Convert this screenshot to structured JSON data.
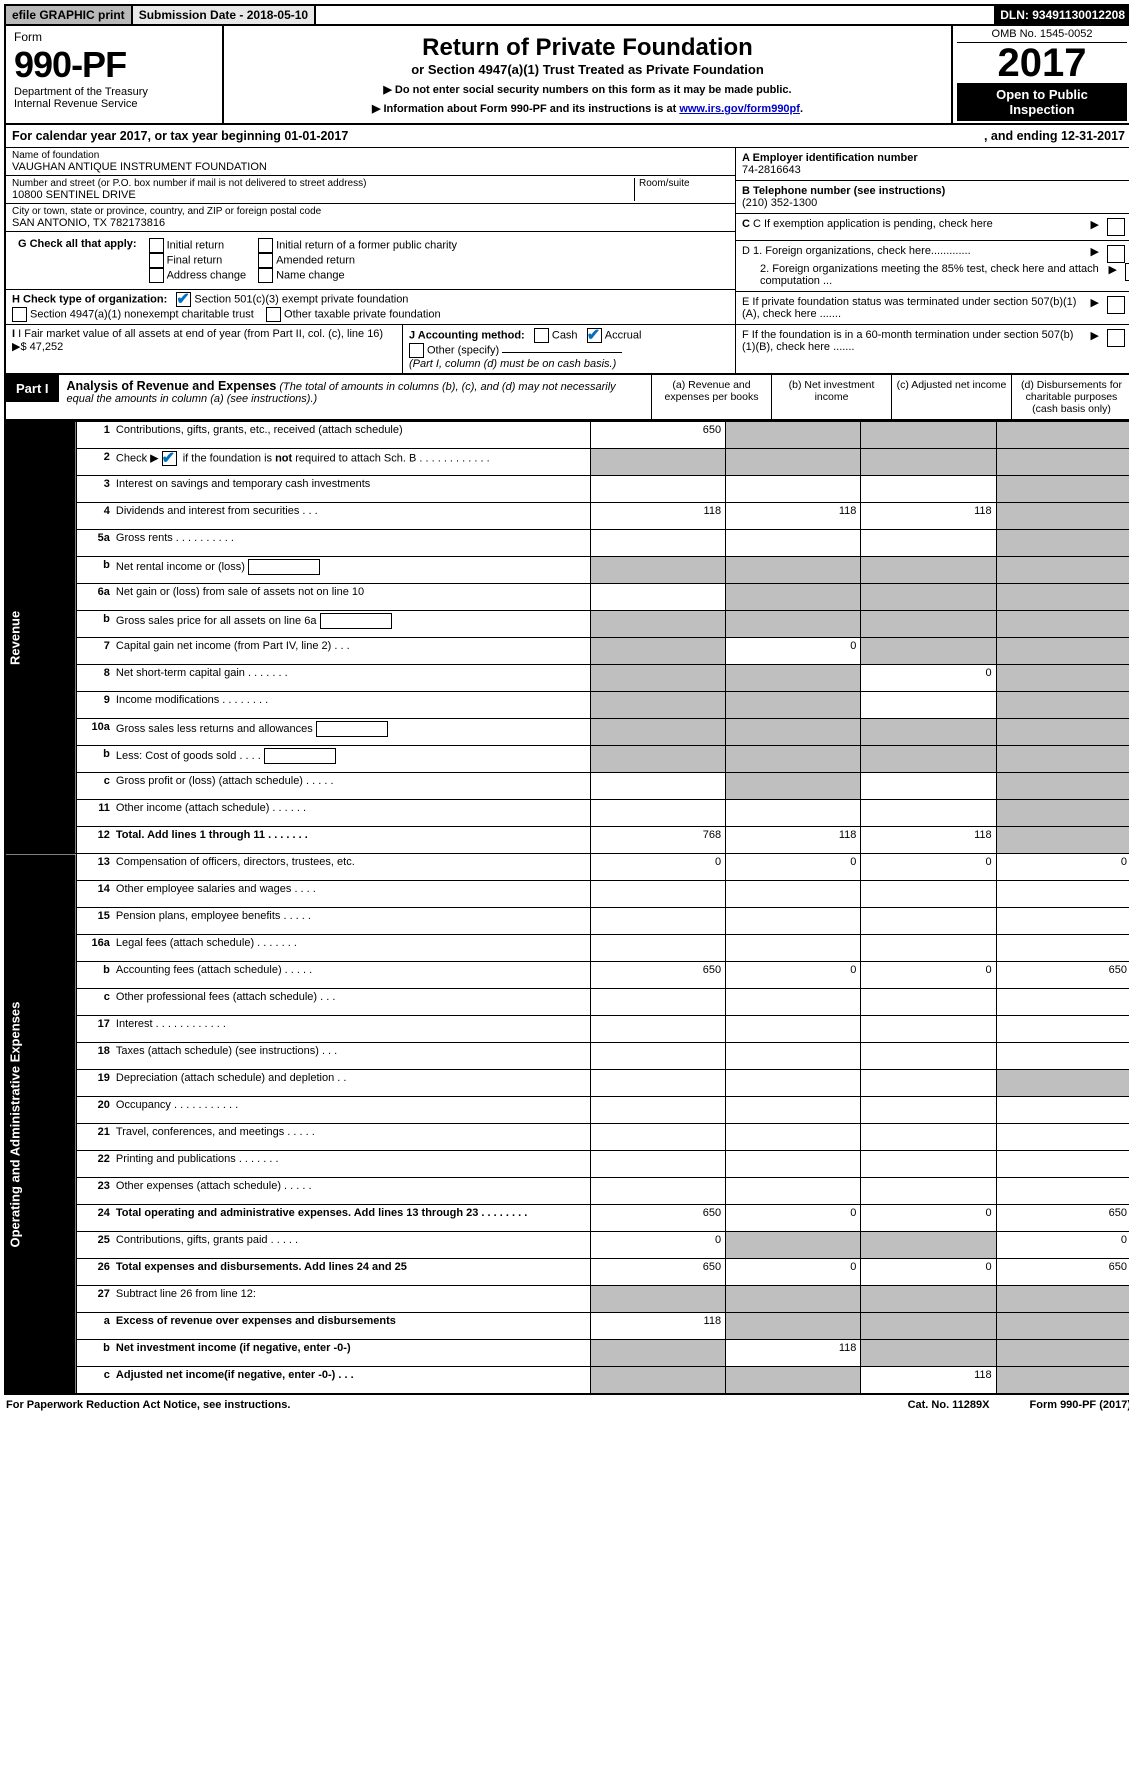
{
  "topbar": {
    "efile": "efile GRAPHIC print",
    "subdate_label": "Submission Date - ",
    "subdate": "2018-05-10",
    "dln_label": "DLN: ",
    "dln": "93491130012208"
  },
  "header": {
    "form_word": "Form",
    "form_no": "990-PF",
    "dept1": "Department of the Treasury",
    "dept2": "Internal Revenue Service",
    "title": "Return of Private Foundation",
    "subtitle": "or Section 4947(a)(1) Trust Treated as Private Foundation",
    "instr1": "▶ Do not enter social security numbers on this form as it may be made public.",
    "instr2_pre": "▶ Information about Form 990-PF and its instructions is at ",
    "instr2_link": "www.irs.gov/form990pf",
    "omb": "OMB No. 1545-0052",
    "year": "2017",
    "open1": "Open to Public",
    "open2": "Inspection"
  },
  "cal": {
    "txt1": "For calendar year 2017, or tax year beginning ",
    "begin": "01-01-2017",
    "txt2": ", and ending ",
    "end": "12-31-2017"
  },
  "name": {
    "lbl": "Name of foundation",
    "val": "VAUGHAN ANTIQUE INSTRUMENT FOUNDATION"
  },
  "addr": {
    "lbl": "Number and street (or P.O. box number if mail is not delivered to street address)",
    "room_lbl": "Room/suite",
    "val": "10800 SENTINEL DRIVE"
  },
  "city": {
    "lbl": "City or town, state or province, country, and ZIP or foreign postal code",
    "val": "SAN ANTONIO, TX  782173816"
  },
  "right": {
    "a_lbl": "A Employer identification number",
    "a_val": "74-2816643",
    "b_lbl": "B Telephone number (see instructions)",
    "b_val": "(210) 352-1300",
    "c_lbl": "C If exemption application is pending, check here",
    "d1": "D 1. Foreign organizations, check here.............",
    "d2": "2. Foreign organizations meeting the 85% test, check here and attach computation ...",
    "e": "E  If private foundation status was terminated under section 507(b)(1)(A), check here .......",
    "f": "F  If the foundation is in a 60-month termination under section 507(b)(1)(B), check here ......."
  },
  "g": {
    "lbl": "G Check all that apply:",
    "initial": "Initial return",
    "initial_former": "Initial return of a former public charity",
    "final": "Final return",
    "amended": "Amended return",
    "address": "Address change",
    "namechg": "Name change"
  },
  "h": {
    "lbl": "H Check type of organization:",
    "s501c3": "Section 501(c)(3) exempt private foundation",
    "s4947": "Section 4947(a)(1) nonexempt charitable trust",
    "other": "Other taxable private foundation"
  },
  "i": {
    "lbl": "I Fair market value of all assets at end of year (from Part II, col. (c), line 16)",
    "arrow": "▶$ ",
    "val": "47,252"
  },
  "j": {
    "lbl": "J Accounting method:",
    "cash": "Cash",
    "accrual": "Accrual",
    "other_lbl": "Other (specify)",
    "note": "(Part I, column (d) must be on cash basis.)"
  },
  "part1": {
    "tab": "Part I",
    "title": "Analysis of Revenue and Expenses",
    "note": "(The total of amounts in columns (b), (c), and (d) may not necessarily equal the amounts in column (a) (see instructions).)",
    "col_a": "(a)   Revenue and expenses per books",
    "col_b": "(b)  Net investment income",
    "col_c": "(c)  Adjusted net income",
    "col_d": "(d)  Disbursements for charitable purposes (cash basis only)"
  },
  "sidelabels": {
    "rev": "Revenue",
    "exp": "Operating and Administrative Expenses"
  },
  "rows": {
    "r1": {
      "n": "1",
      "t": "Contributions, gifts, grants, etc., received (attach schedule)",
      "a": "650",
      "b": "",
      "c": "",
      "d": "",
      "sb": true,
      "sc": true,
      "sd": true
    },
    "r2": {
      "n": "2",
      "t": "Check ▶ ✔ if the foundation is not required to attach Sch. B",
      "a": "",
      "b": "",
      "c": "",
      "d": "",
      "sa": true,
      "sb": true,
      "sc": true,
      "sd": true,
      "bold_not": true
    },
    "r3": {
      "n": "3",
      "t": "Interest on savings and temporary cash investments",
      "a": "",
      "b": "",
      "c": "",
      "d": "",
      "sd": true
    },
    "r4": {
      "n": "4",
      "t": "Dividends and interest from securities   .   .   .",
      "a": "118",
      "b": "118",
      "c": "118",
      "d": "",
      "sd": true
    },
    "r5a": {
      "n": "5a",
      "t": "Gross rents   .   .   .   .   .   .   .   .   .   .",
      "a": "",
      "b": "",
      "c": "",
      "d": "",
      "sd": true
    },
    "r5b": {
      "n": "b",
      "t": "Net rental income or (loss)   ",
      "a": "",
      "b": "",
      "c": "",
      "d": "",
      "sa": true,
      "sb": true,
      "sc": true,
      "sd": true,
      "box": true
    },
    "r6a": {
      "n": "6a",
      "t": "Net gain or (loss) from sale of assets not on line 10",
      "a": "",
      "b": "",
      "c": "",
      "d": "",
      "sb": true,
      "sc": true,
      "sd": true
    },
    "r6b": {
      "n": "b",
      "t": "Gross sales price for all assets on line 6a  ",
      "a": "",
      "b": "",
      "c": "",
      "d": "",
      "sa": true,
      "sb": true,
      "sc": true,
      "sd": true,
      "box": true
    },
    "r7": {
      "n": "7",
      "t": "Capital gain net income (from Part IV, line 2)   .   .   .",
      "a": "",
      "b": "0",
      "c": "",
      "d": "",
      "sa": true,
      "sc": true,
      "sd": true
    },
    "r8": {
      "n": "8",
      "t": "Net short-term capital gain   .   .   .   .   .   .   .",
      "a": "",
      "b": "",
      "c": "0",
      "d": "",
      "sa": true,
      "sb": true,
      "sd": true
    },
    "r9": {
      "n": "9",
      "t": "Income modifications   .   .   .   .   .   .   .   .",
      "a": "",
      "b": "",
      "c": "",
      "d": "",
      "sa": true,
      "sb": true,
      "sd": true
    },
    "r10a": {
      "n": "10a",
      "t": "Gross sales less returns and allowances   ",
      "a": "",
      "b": "",
      "c": "",
      "d": "",
      "sa": true,
      "sb": true,
      "sc": true,
      "sd": true,
      "box": true
    },
    "r10b": {
      "n": "b",
      "t": "Less: Cost of goods sold   .   .   .   .   ",
      "a": "",
      "b": "",
      "c": "",
      "d": "",
      "sa": true,
      "sb": true,
      "sc": true,
      "sd": true,
      "box": true
    },
    "r10c": {
      "n": "c",
      "t": "Gross profit or (loss) (attach schedule)   .   .   .   .   .",
      "a": "",
      "b": "",
      "c": "",
      "d": "",
      "sb": true,
      "sd": true
    },
    "r11": {
      "n": "11",
      "t": "Other income (attach schedule)   .   .   .   .   .   .",
      "a": "",
      "b": "",
      "c": "",
      "d": "",
      "sd": true
    },
    "r12": {
      "n": "12",
      "t": "Total. Add lines 1 through 11   .   .   .   .   .   .   .",
      "a": "768",
      "b": "118",
      "c": "118",
      "d": "",
      "bold": true,
      "sd": true
    },
    "r13": {
      "n": "13",
      "t": "Compensation of officers, directors, trustees, etc.",
      "a": "0",
      "b": "0",
      "c": "0",
      "d": "0"
    },
    "r14": {
      "n": "14",
      "t": "Other employee salaries and wages   .   .   .   .",
      "a": "",
      "b": "",
      "c": "",
      "d": ""
    },
    "r15": {
      "n": "15",
      "t": "Pension plans, employee benefits   .   .   .   .   .",
      "a": "",
      "b": "",
      "c": "",
      "d": ""
    },
    "r16a": {
      "n": "16a",
      "t": "Legal fees (attach schedule)   .   .   .   .   .   .   .",
      "a": "",
      "b": "",
      "c": "",
      "d": ""
    },
    "r16b": {
      "n": "b",
      "t": "Accounting fees (attach schedule)   .   .   .   .   .",
      "a": "650",
      "b": "0",
      "c": "0",
      "d": "650"
    },
    "r16c": {
      "n": "c",
      "t": "Other professional fees (attach schedule)   .   .   .",
      "a": "",
      "b": "",
      "c": "",
      "d": ""
    },
    "r17": {
      "n": "17",
      "t": "Interest   .   .   .   .   .   .   .   .   .   .   .   .",
      "a": "",
      "b": "",
      "c": "",
      "d": ""
    },
    "r18": {
      "n": "18",
      "t": "Taxes (attach schedule) (see instructions)   .   .   .",
      "a": "",
      "b": "",
      "c": "",
      "d": ""
    },
    "r19": {
      "n": "19",
      "t": "Depreciation (attach schedule) and depletion   .   .",
      "a": "",
      "b": "",
      "c": "",
      "d": "",
      "sd": true
    },
    "r20": {
      "n": "20",
      "t": "Occupancy   .   .   .   .   .   .   .   .   .   .   .",
      "a": "",
      "b": "",
      "c": "",
      "d": ""
    },
    "r21": {
      "n": "21",
      "t": "Travel, conferences, and meetings   .   .   .   .   .",
      "a": "",
      "b": "",
      "c": "",
      "d": ""
    },
    "r22": {
      "n": "22",
      "t": "Printing and publications   .   .   .   .   .   .   .",
      "a": "",
      "b": "",
      "c": "",
      "d": ""
    },
    "r23": {
      "n": "23",
      "t": "Other expenses (attach schedule)   .   .   .   .   .",
      "a": "",
      "b": "",
      "c": "",
      "d": ""
    },
    "r24": {
      "n": "24",
      "t": "Total operating and administrative expenses. Add lines 13 through 23   .   .   .   .   .   .   .   .",
      "a": "650",
      "b": "0",
      "c": "0",
      "d": "650",
      "bold": true
    },
    "r25": {
      "n": "25",
      "t": "Contributions, gifts, grants paid   .   .   .   .   .",
      "a": "0",
      "b": "",
      "c": "",
      "d": "0",
      "sb": true,
      "sc": true
    },
    "r26": {
      "n": "26",
      "t": "Total expenses and disbursements. Add lines 24 and 25",
      "a": "650",
      "b": "0",
      "c": "0",
      "d": "650",
      "bold": true
    },
    "r27": {
      "n": "27",
      "t": "Subtract line 26 from line 12:",
      "a": "",
      "b": "",
      "c": "",
      "d": "",
      "sa": true,
      "sb": true,
      "sc": true,
      "sd": true
    },
    "r27a": {
      "n": "a",
      "t": "Excess of revenue over expenses and disbursements",
      "a": "118",
      "b": "",
      "c": "",
      "d": "",
      "bold": true,
      "sb": true,
      "sc": true,
      "sd": true
    },
    "r27b": {
      "n": "b",
      "t": "Net investment income (if negative, enter -0-)",
      "a": "",
      "b": "118",
      "c": "",
      "d": "",
      "bold": true,
      "sa": true,
      "sc": true,
      "sd": true
    },
    "r27c": {
      "n": "c",
      "t": "Adjusted net income(if negative, enter -0-)   .   .   .",
      "a": "",
      "b": "",
      "c": "118",
      "d": "",
      "bold": true,
      "sa": true,
      "sb": true,
      "sd": true
    }
  },
  "footer": {
    "left": "For Paperwork Reduction Act Notice, see instructions.",
    "mid": "Cat. No. 11289X",
    "right": "Form 990-PF (2017)"
  },
  "colors": {
    "checkmark": "#0070c0",
    "shade": "#bfbfbf",
    "link": "#0000cc"
  }
}
